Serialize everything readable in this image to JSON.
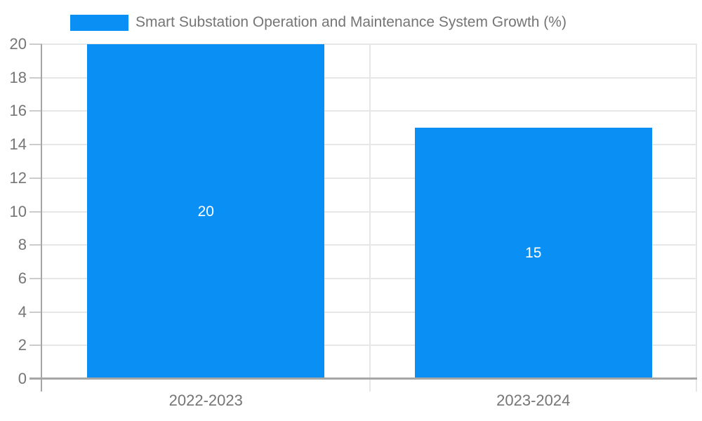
{
  "chart_data": {
    "type": "bar",
    "title": "Smart Substation Operation and Maintenance System Growth (%)",
    "categories": [
      "2022-2023",
      "2023-2024"
    ],
    "values": [
      20,
      15
    ],
    "xlabel": "",
    "ylabel": "",
    "ylim": [
      0,
      20
    ],
    "yticks": [
      0,
      2,
      4,
      6,
      8,
      10,
      12,
      14,
      16,
      18,
      20
    ],
    "grid": true,
    "legend_position": "top-center",
    "bar_color": "#0a90f5",
    "bar_label_color": "#ffffff",
    "axis_text_color": "#757575",
    "grid_color": "#e7e7e7",
    "tick_color": "#cccccc",
    "axis_line_color": "#a6a6a6"
  }
}
